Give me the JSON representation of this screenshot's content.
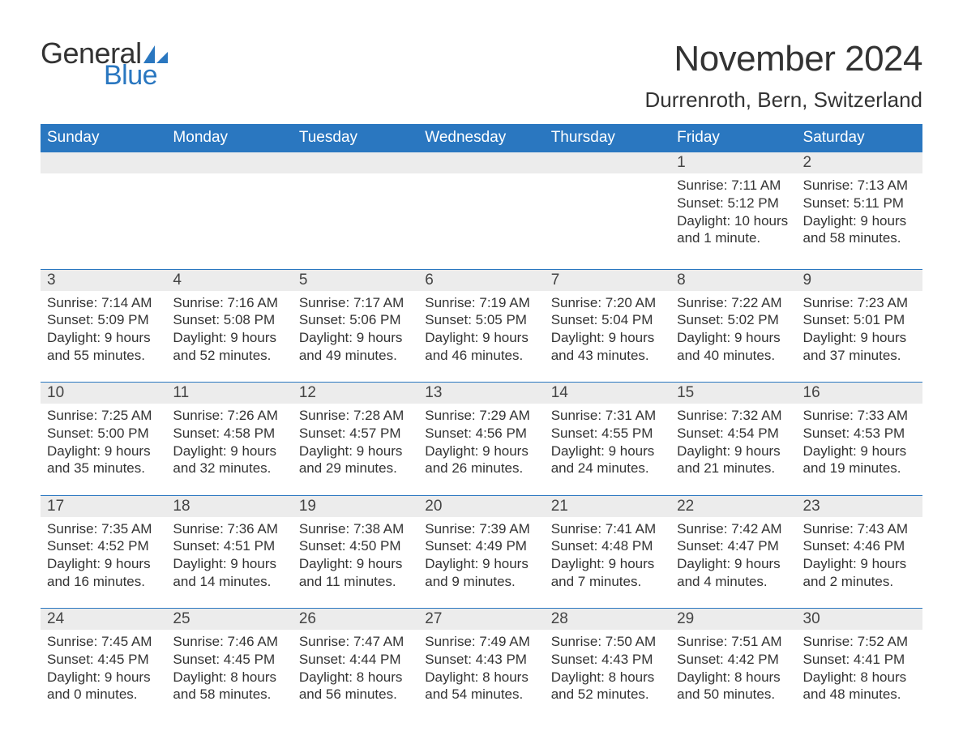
{
  "brand": {
    "line1": "General",
    "line2": "Blue"
  },
  "title": "November 2024",
  "location": "Durrenroth, Bern, Switzerland",
  "colors": {
    "header_bg": "#2a77c0",
    "header_text": "#ffffff",
    "daynum_bg": "#ececec",
    "row_border": "#2a77c0",
    "body_text": "#333333",
    "brand_blue": "#2a77c0"
  },
  "typography": {
    "title_fontsize": 44,
    "location_fontsize": 26,
    "header_fontsize": 19,
    "daynum_fontsize": 19,
    "detail_fontsize": 17
  },
  "day_headers": [
    "Sunday",
    "Monday",
    "Tuesday",
    "Wednesday",
    "Thursday",
    "Friday",
    "Saturday"
  ],
  "weeks": [
    [
      null,
      null,
      null,
      null,
      null,
      {
        "n": "1",
        "sunrise": "7:11 AM",
        "sunset": "5:12 PM",
        "daylight": "10 hours and 1 minute."
      },
      {
        "n": "2",
        "sunrise": "7:13 AM",
        "sunset": "5:11 PM",
        "daylight": "9 hours and 58 minutes."
      }
    ],
    [
      {
        "n": "3",
        "sunrise": "7:14 AM",
        "sunset": "5:09 PM",
        "daylight": "9 hours and 55 minutes."
      },
      {
        "n": "4",
        "sunrise": "7:16 AM",
        "sunset": "5:08 PM",
        "daylight": "9 hours and 52 minutes."
      },
      {
        "n": "5",
        "sunrise": "7:17 AM",
        "sunset": "5:06 PM",
        "daylight": "9 hours and 49 minutes."
      },
      {
        "n": "6",
        "sunrise": "7:19 AM",
        "sunset": "5:05 PM",
        "daylight": "9 hours and 46 minutes."
      },
      {
        "n": "7",
        "sunrise": "7:20 AM",
        "sunset": "5:04 PM",
        "daylight": "9 hours and 43 minutes."
      },
      {
        "n": "8",
        "sunrise": "7:22 AM",
        "sunset": "5:02 PM",
        "daylight": "9 hours and 40 minutes."
      },
      {
        "n": "9",
        "sunrise": "7:23 AM",
        "sunset": "5:01 PM",
        "daylight": "9 hours and 37 minutes."
      }
    ],
    [
      {
        "n": "10",
        "sunrise": "7:25 AM",
        "sunset": "5:00 PM",
        "daylight": "9 hours and 35 minutes."
      },
      {
        "n": "11",
        "sunrise": "7:26 AM",
        "sunset": "4:58 PM",
        "daylight": "9 hours and 32 minutes."
      },
      {
        "n": "12",
        "sunrise": "7:28 AM",
        "sunset": "4:57 PM",
        "daylight": "9 hours and 29 minutes."
      },
      {
        "n": "13",
        "sunrise": "7:29 AM",
        "sunset": "4:56 PM",
        "daylight": "9 hours and 26 minutes."
      },
      {
        "n": "14",
        "sunrise": "7:31 AM",
        "sunset": "4:55 PM",
        "daylight": "9 hours and 24 minutes."
      },
      {
        "n": "15",
        "sunrise": "7:32 AM",
        "sunset": "4:54 PM",
        "daylight": "9 hours and 21 minutes."
      },
      {
        "n": "16",
        "sunrise": "7:33 AM",
        "sunset": "4:53 PM",
        "daylight": "9 hours and 19 minutes."
      }
    ],
    [
      {
        "n": "17",
        "sunrise": "7:35 AM",
        "sunset": "4:52 PM",
        "daylight": "9 hours and 16 minutes."
      },
      {
        "n": "18",
        "sunrise": "7:36 AM",
        "sunset": "4:51 PM",
        "daylight": "9 hours and 14 minutes."
      },
      {
        "n": "19",
        "sunrise": "7:38 AM",
        "sunset": "4:50 PM",
        "daylight": "9 hours and 11 minutes."
      },
      {
        "n": "20",
        "sunrise": "7:39 AM",
        "sunset": "4:49 PM",
        "daylight": "9 hours and 9 minutes."
      },
      {
        "n": "21",
        "sunrise": "7:41 AM",
        "sunset": "4:48 PM",
        "daylight": "9 hours and 7 minutes."
      },
      {
        "n": "22",
        "sunrise": "7:42 AM",
        "sunset": "4:47 PM",
        "daylight": "9 hours and 4 minutes."
      },
      {
        "n": "23",
        "sunrise": "7:43 AM",
        "sunset": "4:46 PM",
        "daylight": "9 hours and 2 minutes."
      }
    ],
    [
      {
        "n": "24",
        "sunrise": "7:45 AM",
        "sunset": "4:45 PM",
        "daylight": "9 hours and 0 minutes."
      },
      {
        "n": "25",
        "sunrise": "7:46 AM",
        "sunset": "4:45 PM",
        "daylight": "8 hours and 58 minutes."
      },
      {
        "n": "26",
        "sunrise": "7:47 AM",
        "sunset": "4:44 PM",
        "daylight": "8 hours and 56 minutes."
      },
      {
        "n": "27",
        "sunrise": "7:49 AM",
        "sunset": "4:43 PM",
        "daylight": "8 hours and 54 minutes."
      },
      {
        "n": "28",
        "sunrise": "7:50 AM",
        "sunset": "4:43 PM",
        "daylight": "8 hours and 52 minutes."
      },
      {
        "n": "29",
        "sunrise": "7:51 AM",
        "sunset": "4:42 PM",
        "daylight": "8 hours and 50 minutes."
      },
      {
        "n": "30",
        "sunrise": "7:52 AM",
        "sunset": "4:41 PM",
        "daylight": "8 hours and 48 minutes."
      }
    ]
  ],
  "labels": {
    "sunrise": "Sunrise: ",
    "sunset": "Sunset: ",
    "daylight": "Daylight: "
  }
}
